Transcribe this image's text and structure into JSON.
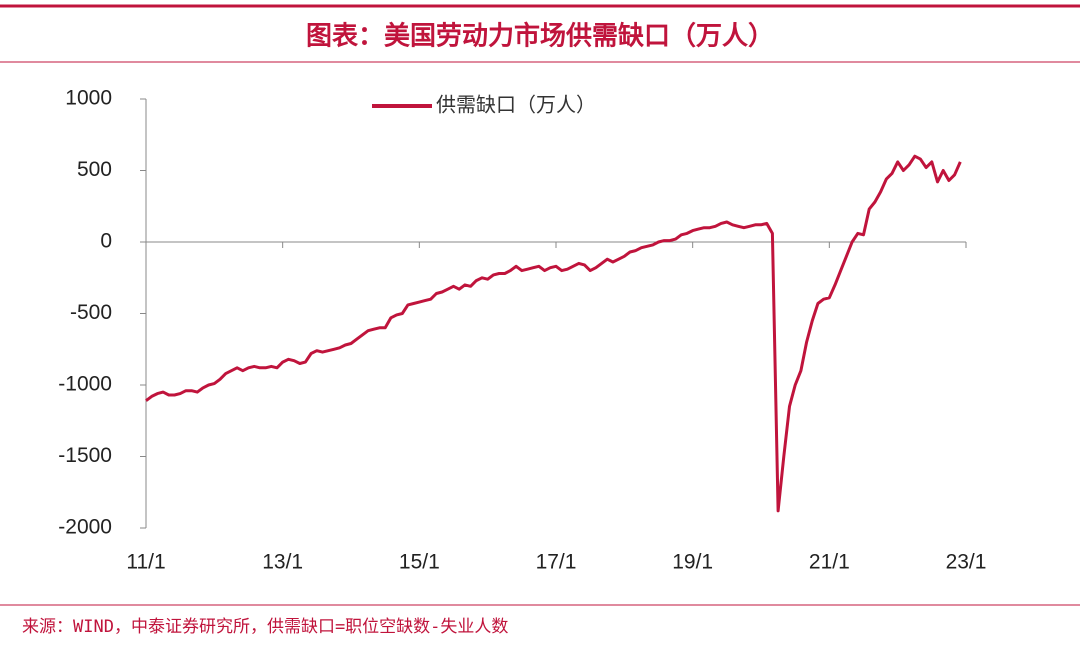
{
  "chart_data": {
    "type": "line",
    "title": "图表：美国劳动力市场供需缺口（万人）",
    "source": "来源：WIND，中泰证券研究所，供需缺口=职位空缺数-失业人数",
    "categories": [
      "11/1",
      null,
      null,
      null,
      null,
      null,
      null,
      null,
      null,
      null,
      null,
      null,
      null,
      null,
      null,
      null,
      null,
      null,
      null,
      null,
      null,
      null,
      null,
      null,
      "13/1",
      null,
      null,
      null,
      null,
      null,
      null,
      null,
      null,
      null,
      null,
      null,
      null,
      null,
      null,
      null,
      null,
      null,
      null,
      null,
      null,
      null,
      null,
      null,
      "15/1",
      null,
      null,
      null,
      null,
      null,
      null,
      null,
      null,
      null,
      null,
      null,
      null,
      null,
      null,
      null,
      null,
      null,
      null,
      null,
      null,
      null,
      null,
      null,
      "17/1",
      null,
      null,
      null,
      null,
      null,
      null,
      null,
      null,
      null,
      null,
      null,
      null,
      null,
      null,
      null,
      null,
      null,
      null,
      null,
      null,
      null,
      null,
      null,
      "19/1",
      null,
      null,
      null,
      null,
      null,
      null,
      null,
      null,
      null,
      null,
      null,
      null,
      null,
      null,
      null,
      null,
      null,
      null,
      null,
      null,
      null,
      null,
      null,
      "21/1",
      null,
      null,
      null,
      null,
      null,
      null,
      null,
      null,
      null,
      null,
      null,
      null,
      null,
      null,
      null,
      null,
      null,
      null,
      null,
      null,
      null,
      null,
      null,
      "23/1"
    ],
    "series": [
      {
        "name": "供需缺口（万人）",
        "color": "#c0143c",
        "values": [
          -1110,
          -1080,
          -1060,
          -1050,
          -1070,
          -1070,
          -1060,
          -1040,
          -1040,
          -1050,
          -1020,
          -1000,
          -990,
          -960,
          -920,
          -900,
          -880,
          -900,
          -880,
          -870,
          -880,
          -880,
          -870,
          -880,
          -840,
          -820,
          -830,
          -850,
          -840,
          -780,
          -760,
          -770,
          -760,
          -750,
          -740,
          -720,
          -710,
          -680,
          -650,
          -620,
          -610,
          -600,
          -600,
          -530,
          -510,
          -500,
          -440,
          -430,
          -420,
          -410,
          -400,
          -360,
          -350,
          -330,
          -310,
          -330,
          -300,
          -310,
          -270,
          -250,
          -260,
          -230,
          -220,
          -220,
          -200,
          -170,
          -200,
          -190,
          -180,
          -170,
          -200,
          -180,
          -170,
          -200,
          -190,
          -170,
          -150,
          -160,
          -200,
          -180,
          -150,
          -120,
          -140,
          -120,
          -100,
          -70,
          -60,
          -40,
          -30,
          -20,
          0,
          10,
          10,
          20,
          50,
          60,
          80,
          90,
          100,
          100,
          110,
          130,
          140,
          120,
          110,
          100,
          110,
          120,
          120,
          130,
          60,
          -1880,
          -1500,
          -1150,
          -1000,
          -900,
          -700,
          -550,
          -430,
          -400,
          -390,
          -300,
          -200,
          -100,
          0,
          60,
          50,
          230,
          280,
          350,
          440,
          480,
          560,
          500,
          540,
          600,
          580,
          520,
          560,
          420,
          500,
          430,
          470,
          560,
          null
        ]
      }
    ],
    "ylim": [
      -2000,
      1000
    ],
    "yticks": [
      -2000,
      -1500,
      -1000,
      -500,
      0,
      500,
      1000
    ]
  }
}
